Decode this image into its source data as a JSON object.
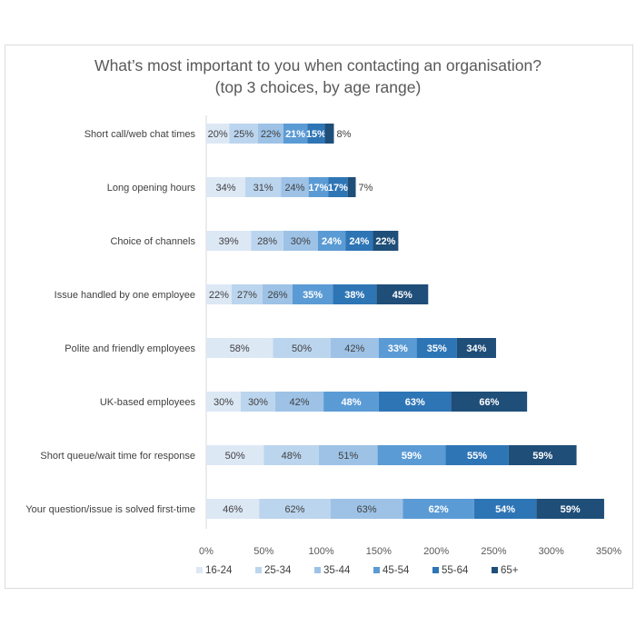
{
  "chart_data": {
    "type": "bar",
    "orientation": "horizontal",
    "stacked": true,
    "title": "What’s most important to you when contacting an organisation?",
    "subtitle": "(top 3 choices, by age range)",
    "xlabel": "",
    "ylabel": "",
    "xlim": [
      0,
      350
    ],
    "x_ticks": [
      "0%",
      "50%",
      "100%",
      "150%",
      "200%",
      "250%",
      "300%",
      "350%"
    ],
    "x_tick_values": [
      0,
      50,
      100,
      150,
      200,
      250,
      300,
      350
    ],
    "grid": false,
    "legend_position": "bottom",
    "categories": [
      "Short call/web chat times",
      "Long opening hours",
      "Choice of channels",
      "Issue handled by one employee",
      "Polite and friendly employees",
      "UK-based employees",
      "Short queue/wait time for response",
      "Your question/issue is solved first-time"
    ],
    "series": [
      {
        "name": "16-24",
        "color": "#dde8f5",
        "label_color": "#404040",
        "values": [
          20,
          34,
          39,
          22,
          58,
          30,
          50,
          46
        ]
      },
      {
        "name": "25-34",
        "color": "#bcd5ee",
        "label_color": "#404040",
        "values": [
          25,
          31,
          28,
          27,
          50,
          30,
          48,
          62
        ]
      },
      {
        "name": "35-44",
        "color": "#9dc2e6",
        "label_color": "#404040",
        "values": [
          22,
          24,
          30,
          26,
          42,
          42,
          51,
          63
        ]
      },
      {
        "name": "45-54",
        "color": "#5b9bd5",
        "label_color": "#ffffff",
        "values": [
          21,
          17,
          24,
          35,
          33,
          48,
          59,
          62
        ]
      },
      {
        "name": "55-64",
        "color": "#2e75b6",
        "label_color": "#ffffff",
        "values": [
          15,
          17,
          24,
          38,
          35,
          63,
          55,
          54
        ]
      },
      {
        "name": "65+",
        "color": "#1f4e79",
        "label_color": "#ffffff",
        "values": [
          8,
          7,
          22,
          45,
          34,
          66,
          59,
          59
        ]
      }
    ],
    "value_suffix": "%"
  }
}
